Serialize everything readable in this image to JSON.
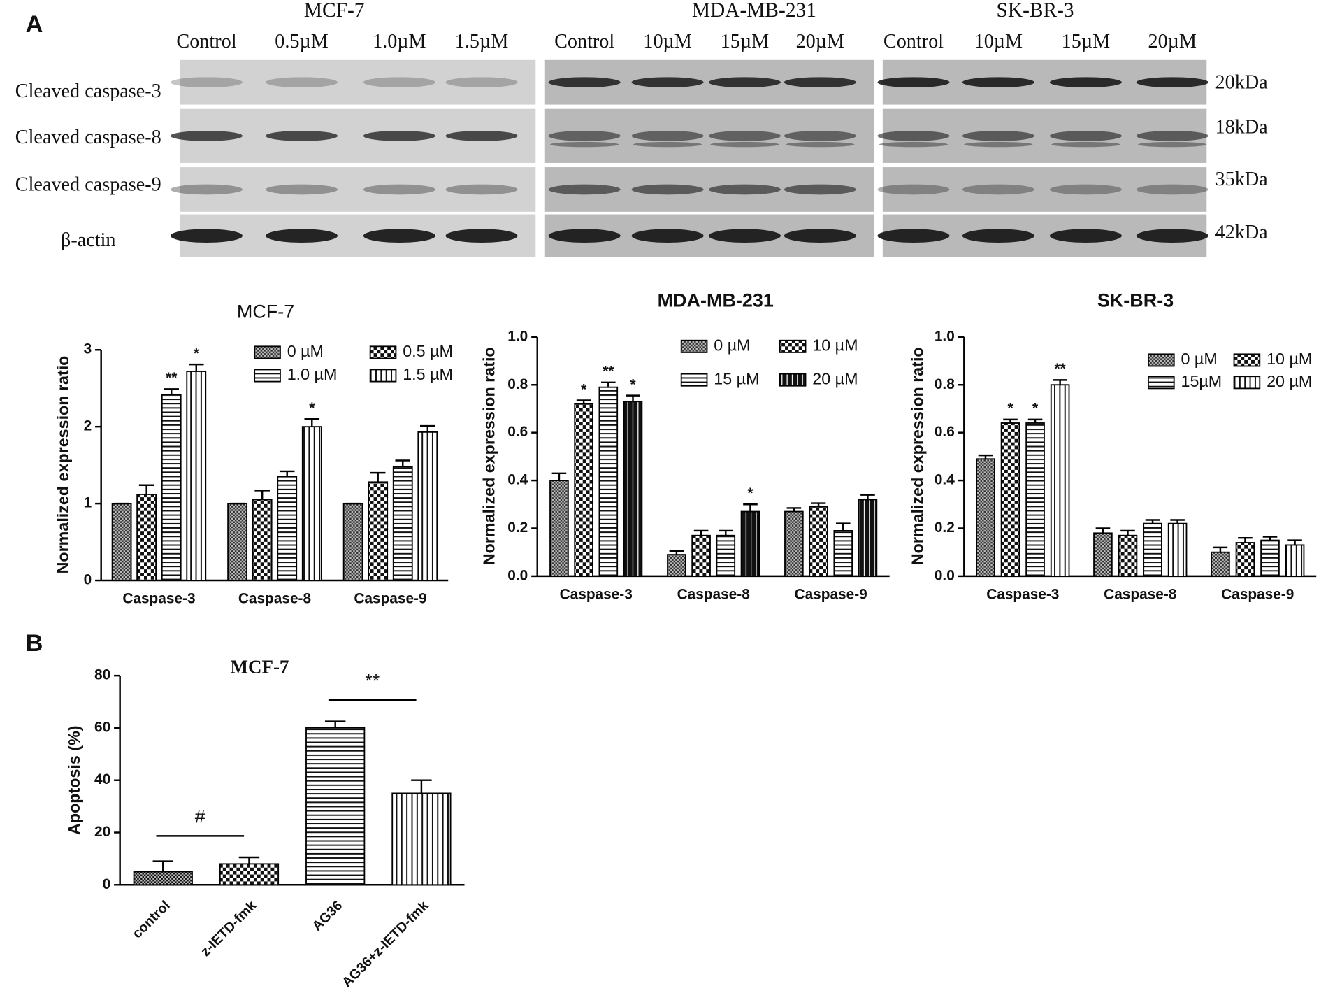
{
  "panel_labels": [
    "A",
    "B"
  ],
  "blot": {
    "panels": [
      {
        "title": "MCF-7",
        "lanes": [
          "Control",
          "0.5µM",
          "1.0µM",
          "1.5µM"
        ]
      },
      {
        "title": "MDA-MB-231",
        "lanes": [
          "Control",
          "10µM",
          "15µM",
          "20µM"
        ]
      },
      {
        "title": "SK-BR-3",
        "lanes": [
          "Control",
          "10µM",
          "15µM",
          "20µM"
        ]
      }
    ],
    "rows": [
      "Cleaved caspase-3",
      "Cleaved caspase-8",
      "Cleaved caspase-9",
      "β-actin"
    ],
    "sizes": [
      "20kDa",
      "18kDa",
      "35kDa",
      "42kDa"
    ]
  },
  "chart_data": [
    {
      "type": "bar",
      "title": "MCF-7",
      "y_label": "Normalized expression ratio",
      "categories": [
        "Caspase-3",
        "Caspase-8",
        "Caspase-9"
      ],
      "ylim": [
        0,
        3
      ],
      "yticks": [
        0,
        1,
        2,
        3
      ],
      "legend": "upper right",
      "series": [
        {
          "name": "0 µM",
          "color": "#333333",
          "pattern": "fine-checker",
          "values": [
            1,
            1,
            1
          ],
          "errors": [
            0,
            0,
            0
          ],
          "significance": [
            null,
            null,
            null
          ]
        },
        {
          "name": "0.5 µM",
          "color": "#111111",
          "pattern": "checker",
          "values": [
            1.12,
            1.05,
            1.28
          ],
          "errors": [
            0.12,
            0.12,
            0.12
          ],
          "significance": [
            null,
            null,
            null
          ]
        },
        {
          "name": "1.0 µM",
          "color": "#111111",
          "pattern": "hlines",
          "values": [
            2.42,
            1.35,
            1.48
          ],
          "errors": [
            0.07,
            0.07,
            0.08
          ],
          "significance": [
            "**",
            null,
            null
          ]
        },
        {
          "name": "1.5 µM",
          "color": "#111111",
          "pattern": "vlines",
          "values": [
            2.72,
            2.0,
            1.93
          ],
          "errors": [
            0.09,
            0.1,
            0.08
          ],
          "significance": [
            "*",
            "*",
            null
          ]
        }
      ]
    },
    {
      "type": "bar",
      "title": "MDA-MB-231",
      "y_label": "Normalized expression ratio",
      "categories": [
        "Caspase-3",
        "Caspase-8",
        "Caspase-9"
      ],
      "ylim": [
        0,
        1
      ],
      "yticks": [
        {
          "value": 0,
          "label": "0.0"
        },
        0.2,
        0.4,
        0.6,
        0.8,
        {
          "value": 1,
          "label": "1.0"
        }
      ],
      "legend": "upper right",
      "series": [
        {
          "name": "0 µM",
          "color": "#333333",
          "pattern": "fine-checker",
          "values": [
            0.4,
            0.09,
            0.27
          ],
          "errors": [
            0.03,
            0.015,
            0.015
          ],
          "significance": [
            null,
            null,
            null
          ]
        },
        {
          "name": "10 µM",
          "color": "#111111",
          "pattern": "checker",
          "values": [
            0.72,
            0.17,
            0.29
          ],
          "errors": [
            0.015,
            0.02,
            0.015
          ],
          "significance": [
            "*",
            null,
            null
          ]
        },
        {
          "name": "15 µM",
          "color": "#111111",
          "pattern": "hlines",
          "values": [
            0.79,
            0.17,
            0.19
          ],
          "errors": [
            0.02,
            0.02,
            0.03
          ],
          "significance": [
            "**",
            null,
            null
          ]
        },
        {
          "name": "20 µM",
          "color": "#111111",
          "pattern": "dark-vlines",
          "values": [
            0.73,
            0.27,
            0.32
          ],
          "errors": [
            0.025,
            0.03,
            0.02
          ],
          "significance": [
            "*",
            "*",
            null
          ]
        }
      ]
    },
    {
      "type": "bar",
      "title": "SK-BR-3",
      "y_label": "Normalized expression ratio",
      "categories": [
        "Caspase-3",
        "Caspase-8",
        "Caspase-9"
      ],
      "ylim": [
        0,
        1
      ],
      "yticks": [
        {
          "value": 0,
          "label": "0.0"
        },
        0.2,
        0.4,
        0.6,
        0.8,
        {
          "value": 1,
          "label": "1.0"
        }
      ],
      "legend": "upper right",
      "series": [
        {
          "name": "0 µM",
          "color": "#333333",
          "pattern": "fine-checker",
          "values": [
            0.49,
            0.18,
            0.1
          ],
          "errors": [
            0.015,
            0.02,
            0.02
          ],
          "significance": [
            null,
            null,
            null
          ]
        },
        {
          "name": "10 µM",
          "color": "#111111",
          "pattern": "checker",
          "values": [
            0.64,
            0.17,
            0.14
          ],
          "errors": [
            0.015,
            0.02,
            0.02
          ],
          "significance": [
            "*",
            null,
            null
          ]
        },
        {
          "name": "15µM",
          "color": "#111111",
          "pattern": "hlines",
          "values": [
            0.64,
            0.22,
            0.15
          ],
          "errors": [
            0.015,
            0.015,
            0.015
          ],
          "significance": [
            "*",
            null,
            null
          ]
        },
        {
          "name": "20 µM",
          "color": "#111111",
          "pattern": "vlines",
          "values": [
            0.8,
            0.22,
            0.13
          ],
          "errors": [
            0.02,
            0.015,
            0.02
          ],
          "significance": [
            "**",
            null,
            null
          ]
        }
      ]
    },
    {
      "type": "bar",
      "title": "MCF-7",
      "y_label": "Apoptosis (%)",
      "categories": [
        "control",
        "z-IETD-fmk",
        "AG36",
        "AG36+z-IETD-fmk"
      ],
      "values": [
        5,
        8,
        60,
        35
      ],
      "errors": [
        4,
        2.5,
        2.5,
        5
      ],
      "color": "#111111",
      "patterns": [
        "fine-checker",
        "checker",
        "hlines",
        "vlines"
      ],
      "ylim": [
        0,
        80
      ],
      "yticks": [
        0,
        20,
        40,
        60,
        80
      ],
      "comparisons": [
        {
          "label": "#",
          "between": [
            0,
            1
          ]
        },
        {
          "label": "**",
          "between": [
            2,
            3
          ]
        }
      ]
    }
  ]
}
